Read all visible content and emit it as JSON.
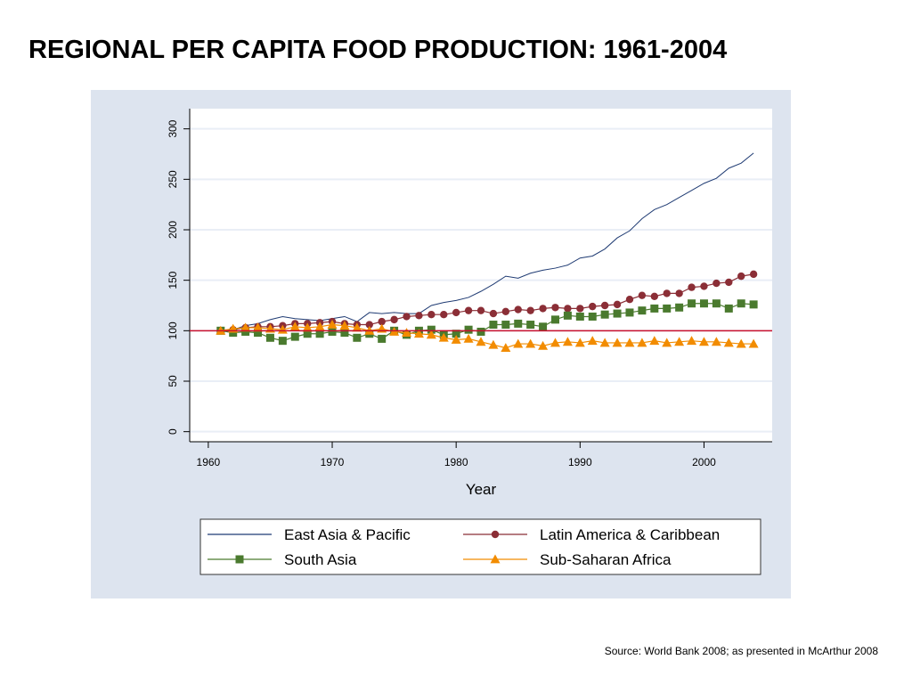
{
  "title": "REGIONAL PER CAPITA FOOD PRODUCTION: 1961-2004",
  "source": "Source: World Bank 2008; as presented in McArthur 2008",
  "colors": {
    "panel_bg": "#dde4ef",
    "grid": "#e9eef6",
    "east_asia": "#1f3b73",
    "latin_america": "#8b2e36",
    "south_asia": "#4a7a2e",
    "ssa": "#f28c00",
    "ref_line": "#c8102e"
  },
  "chart_data": {
    "type": "line",
    "title": "",
    "xlabel": "Year",
    "ylabel": "",
    "xlim": [
      1958.5,
      2005.5
    ],
    "ylim": [
      -10,
      320
    ],
    "xticks": [
      1960,
      1970,
      1980,
      1990,
      2000
    ],
    "yticks": [
      0,
      50,
      100,
      150,
      200,
      250,
      300
    ],
    "grid": true,
    "reference_line": 100,
    "legend": {
      "placement": "bottom",
      "columns": 2
    },
    "x": [
      1961,
      1962,
      1963,
      1964,
      1965,
      1966,
      1967,
      1968,
      1969,
      1970,
      1971,
      1972,
      1973,
      1974,
      1975,
      1976,
      1977,
      1978,
      1979,
      1980,
      1981,
      1982,
      1983,
      1984,
      1985,
      1986,
      1987,
      1988,
      1989,
      1990,
      1991,
      1992,
      1993,
      1994,
      1995,
      1996,
      1997,
      1998,
      1999,
      2000,
      2001,
      2002,
      2003,
      2004
    ],
    "series": [
      {
        "name": "East Asia & Pacific",
        "marker": "none",
        "colorKey": "east_asia",
        "values": [
          100,
          101,
          105,
          107,
          111,
          114,
          112,
          111,
          110,
          112,
          114,
          109,
          118,
          117,
          118,
          117,
          117,
          125,
          128,
          130,
          133,
          139,
          146,
          154,
          152,
          157,
          160,
          162,
          165,
          172,
          174,
          181,
          192,
          199,
          211,
          220,
          225,
          232,
          239,
          246,
          251,
          261,
          266,
          276
        ]
      },
      {
        "name": "Latin America & Caribbean",
        "marker": "circle",
        "colorKey": "latin_america",
        "values": [
          100,
          101,
          103,
          104,
          104,
          105,
          107,
          107,
          108,
          109,
          107,
          106,
          106,
          109,
          111,
          114,
          115,
          116,
          116,
          118,
          120,
          120,
          117,
          119,
          121,
          120,
          122,
          123,
          122,
          122,
          124,
          125,
          126,
          131,
          135,
          134,
          137,
          137,
          143,
          144,
          147,
          148,
          154,
          156
        ]
      },
      {
        "name": "South Asia",
        "marker": "square",
        "colorKey": "south_asia",
        "values": [
          100,
          98,
          99,
          98,
          93,
          90,
          94,
          97,
          97,
          99,
          98,
          93,
          97,
          92,
          100,
          96,
          100,
          101,
          96,
          97,
          101,
          99,
          106,
          106,
          107,
          106,
          104,
          111,
          115,
          114,
          114,
          116,
          117,
          118,
          120,
          122,
          122,
          123,
          127,
          127,
          127,
          122,
          127,
          126
        ]
      },
      {
        "name": "Sub-Saharan Africa",
        "marker": "triangle",
        "colorKey": "ssa",
        "values": [
          100,
          102,
          103,
          103,
          102,
          101,
          104,
          103,
          104,
          106,
          105,
          103,
          100,
          102,
          99,
          98,
          97,
          96,
          93,
          91,
          92,
          89,
          86,
          83,
          87,
          87,
          85,
          88,
          89,
          88,
          90,
          88,
          88,
          88,
          88,
          90,
          88,
          89,
          90,
          89,
          89,
          88,
          87,
          87
        ]
      }
    ]
  }
}
